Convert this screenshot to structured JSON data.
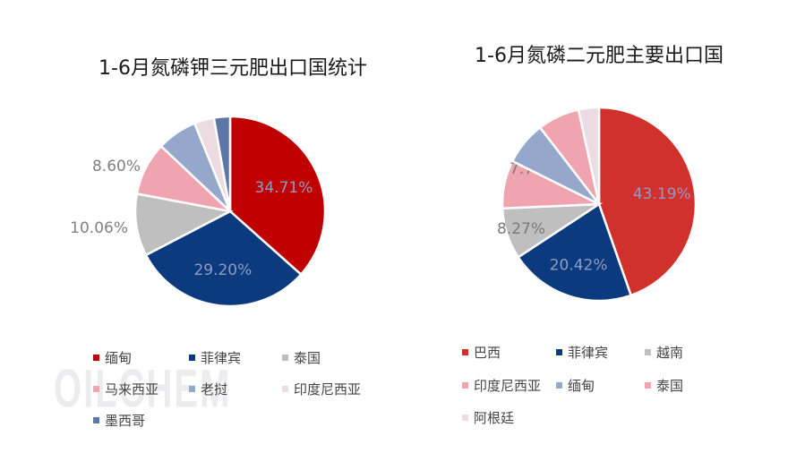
{
  "watermark": "OILCHEM",
  "chart_data": [
    {
      "type": "pie",
      "title": "1-6月氮磷钾三元肥出口国统计",
      "categories": [
        "缅甸",
        "菲律宾",
        "泰国",
        "马来西亚",
        "老挝",
        "印度尼西亚",
        "墨西哥"
      ],
      "values": [
        34.71,
        29.2,
        10.06,
        8.6,
        6.5,
        3.2,
        2.6
      ],
      "labels": [
        "34.71%",
        "29.20%",
        "10.06%",
        "8.60%",
        "",
        "",
        ""
      ],
      "colors": [
        "#c00000",
        "#0b3a7e",
        "#bfbfbf",
        "#efa4b0",
        "#95a8cc",
        "#ecdbe0",
        "#5a77a6"
      ],
      "start_angle_deg": 0,
      "legend_position": "bottom"
    },
    {
      "type": "pie",
      "title": "1-6月氮磷二元肥主要出口国",
      "categories": [
        "巴西",
        "菲律宾",
        "越南",
        "印度尼西亚",
        "缅甸",
        "泰国",
        "阿根廷"
      ],
      "values": [
        43.19,
        20.42,
        8.27,
        7.76,
        7.0,
        6.8,
        3.3
      ],
      "labels": [
        "43.19%",
        "20.42%",
        "8.27%",
        "7.76%",
        "",
        "",
        ""
      ],
      "colors": [
        "#d0312d",
        "#0b3a7e",
        "#bfbfbf",
        "#efa4b0",
        "#95a8cc",
        "#efa4b0",
        "#ecdbe0"
      ],
      "start_angle_deg": 0,
      "legend_position": "bottom"
    }
  ]
}
